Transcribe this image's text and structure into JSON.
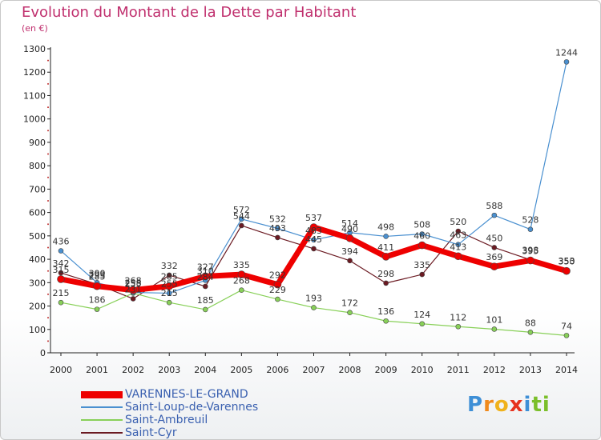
{
  "header": {
    "title": "Evolution du Montant de la Dette par Habitant",
    "subtitle": "(en €)"
  },
  "logo": {
    "letters": [
      "P",
      "r",
      "o",
      "x",
      "i",
      "ti"
    ]
  },
  "chart_data": {
    "type": "line",
    "title": "Evolution du Montant de la Dette par Habitant",
    "ylabel": "(en €)",
    "x": [
      "2000",
      "2001",
      "2002",
      "2003",
      "2004",
      "2005",
      "2006",
      "2007",
      "2008",
      "2009",
      "2010",
      "2011",
      "2012",
      "2013",
      "2014"
    ],
    "ylim": [
      0,
      1300
    ],
    "yticks": [
      0,
      100,
      200,
      300,
      400,
      500,
      600,
      700,
      800,
      900,
      1000,
      1100,
      1200,
      1300
    ],
    "grid": false,
    "legend_position": "bottom-left",
    "series": [
      {
        "name": "VARENNES-LE-GRAND",
        "color": "#ee0000",
        "values": [
          315,
          285,
          268,
          285,
          327,
          335,
          292,
          537,
          490,
          411,
          460,
          413,
          369,
          395,
          350
        ]
      },
      {
        "name": "Saint-Loup-de-Varennes",
        "color": "#4a90d0",
        "values": [
          436,
          300,
          258,
          255,
          310,
          572,
          532,
          483,
          514,
          498,
          508,
          463,
          588,
          528,
          1244
        ]
      },
      {
        "name": "Saint-Ambreuil",
        "color": "#88d058",
        "values": [
          215,
          186,
          255,
          215,
          185,
          268,
          229,
          193,
          172,
          136,
          124,
          112,
          101,
          88,
          74
        ]
      },
      {
        "name": "Saint-Cyr",
        "color": "#6b1a22",
        "values": [
          342,
          293,
          231,
          332,
          284,
          544,
          493,
          445,
          394,
          298,
          335,
          520,
          450,
          398,
          353
        ]
      }
    ]
  }
}
